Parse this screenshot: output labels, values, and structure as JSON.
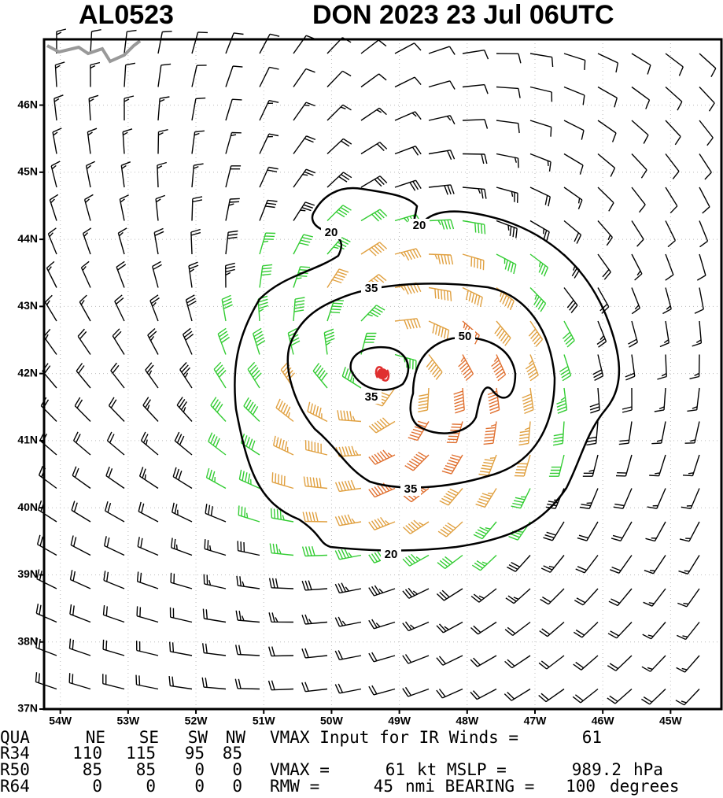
{
  "header": {
    "storm_id": "AL0523",
    "storm_info": "DON 2023 23 Jul 06UTC"
  },
  "map": {
    "xlim": [
      -54.24,
      -44.25
    ],
    "ylim": [
      37,
      46.98
    ],
    "lon_ticks": [
      {
        "value": -54,
        "label": "54W"
      },
      {
        "value": -53,
        "label": "53W"
      },
      {
        "value": -52,
        "label": "52W"
      },
      {
        "value": -51,
        "label": "51W"
      },
      {
        "value": -50,
        "label": "50W"
      },
      {
        "value": -49,
        "label": "49W"
      },
      {
        "value": -48,
        "label": "48W"
      },
      {
        "value": -47,
        "label": "47W"
      },
      {
        "value": -46,
        "label": "46W"
      },
      {
        "value": -45,
        "label": "45W"
      }
    ],
    "lat_ticks": [
      {
        "value": 37,
        "label": "37N"
      },
      {
        "value": 38,
        "label": "38N"
      },
      {
        "value": 39,
        "label": "39N"
      },
      {
        "value": 40,
        "label": "40N"
      },
      {
        "value": 41,
        "label": "41N"
      },
      {
        "value": 42,
        "label": "42N"
      },
      {
        "value": 43,
        "label": "43N"
      },
      {
        "value": 44,
        "label": "44N"
      },
      {
        "value": 45,
        "label": "45N"
      },
      {
        "value": 46,
        "label": "46N"
      }
    ],
    "contour_levels": [
      20,
      35,
      50
    ]
  },
  "table": {
    "header": [
      "QUA",
      "NE",
      "SE",
      "SW",
      "NW"
    ],
    "rows": [
      [
        "R34",
        110,
        115,
        95,
        85
      ],
      [
        "R50",
        85,
        85,
        0,
        0
      ],
      [
        "R64",
        0,
        0,
        0,
        0
      ]
    ]
  },
  "info": {
    "vmax_input_label": "VMAX Input for IR Winds =",
    "vmax_input": 61,
    "vmax_label": "VMAX =",
    "vmax": 61,
    "mslp_label": "kt MSLP =",
    "mslp": 989.2,
    "mslp_unit": "hPa",
    "rmw_label": "RMW =",
    "rmw": 45,
    "bearing_label": "nmi BEARING =",
    "bearing": 100,
    "bearing_unit": "degrees"
  }
}
